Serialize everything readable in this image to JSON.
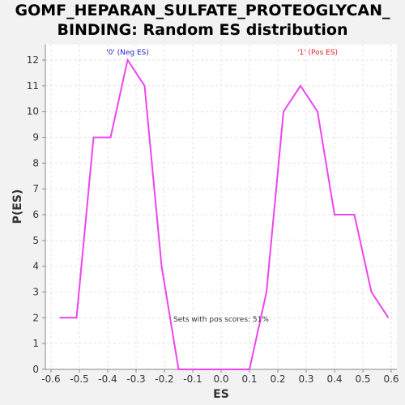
{
  "chart_data": {
    "type": "line",
    "title_lines": [
      "GOMF_HEPARAN_SULFATE_PROTEOGLYCAN_",
      "BINDING: Random ES distribution"
    ],
    "xlabel": "ES",
    "ylabel": "P(ES)",
    "xlim": [
      -0.62,
      0.62
    ],
    "ylim": [
      0,
      12.6
    ],
    "x_ticks": [
      "-0.6",
      "-0.5",
      "-0.4",
      "-0.3",
      "-0.2",
      "-0.1",
      "0.0",
      "0.1",
      "0.2",
      "0.3",
      "0.4",
      "0.5",
      "0.6"
    ],
    "y_ticks": [
      "0",
      "1",
      "2",
      "3",
      "4",
      "5",
      "6",
      "7",
      "8",
      "9",
      "10",
      "11",
      "12"
    ],
    "grid": true,
    "series": [
      {
        "color": "#ee44ee",
        "x": [
          -0.57,
          -0.51,
          -0.45,
          -0.39,
          -0.33,
          -0.27,
          -0.21,
          -0.15,
          -0.09,
          -0.03,
          0.03,
          0.1,
          0.16,
          0.22,
          0.28,
          0.34,
          0.4,
          0.47,
          0.53,
          0.59
        ],
        "y": [
          2,
          2,
          9,
          9,
          12,
          11,
          4,
          0,
          0,
          0,
          0,
          0,
          3,
          10,
          11,
          10,
          6,
          6,
          3,
          2
        ]
      }
    ],
    "annotations": [
      {
        "id": "neg",
        "text": "'0' (Neg ES)",
        "x": -0.33,
        "y": 12.3,
        "color": "#2222cc"
      },
      {
        "id": "pos",
        "text": "'1' (Pos ES)",
        "x": 0.34,
        "y": 12.3,
        "color": "#dd2222"
      },
      {
        "id": "pos_scores",
        "text": "Sets with pos scores: 51%",
        "x": 0.0,
        "y": 1.95,
        "color": "#333333"
      }
    ],
    "colors": {
      "plot_bg": "#ffffff",
      "page_bg": "#f2f2f2",
      "grid": "#e3e3e3",
      "axis": "#888888"
    }
  }
}
